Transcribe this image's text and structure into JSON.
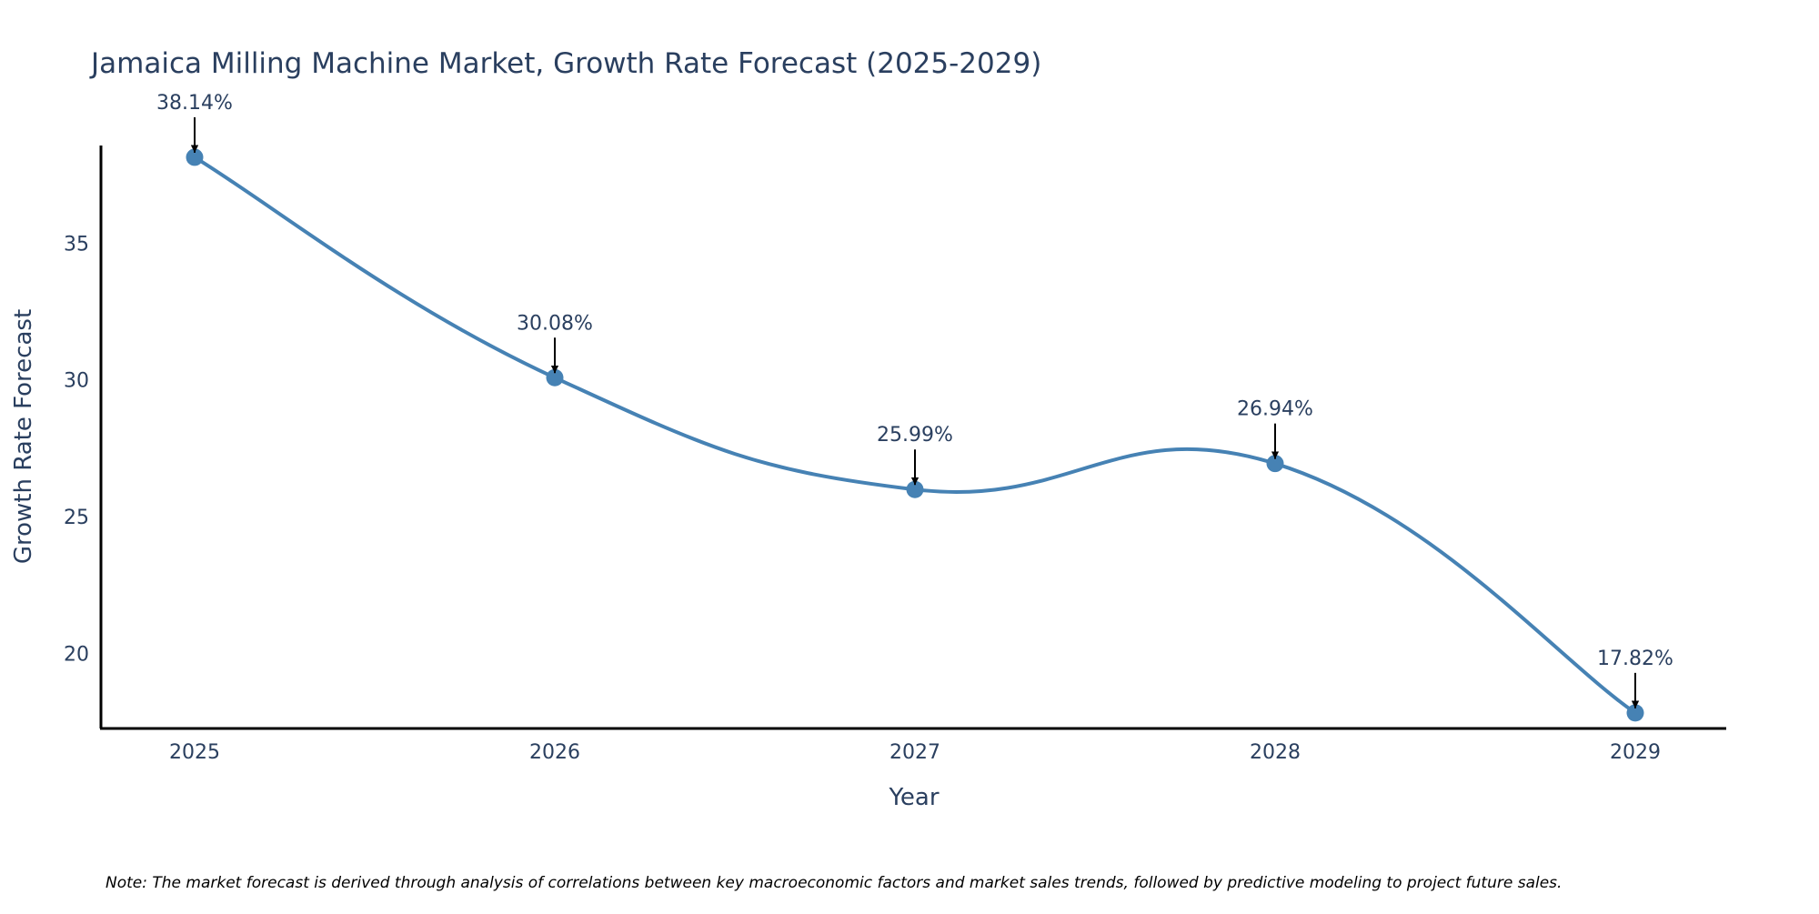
{
  "colors": {
    "line": "#4682b4",
    "marker": "#4682b4",
    "axis": "#000000",
    "text": "#2a3f5f",
    "arrow": "#000000"
  },
  "chart_data": {
    "type": "line",
    "title": "Jamaica Milling Machine Market, Growth Rate Forecast (2025-2029)",
    "xlabel": "Year",
    "ylabel": "Growth Rate Forecast",
    "categories": [
      "2025",
      "2026",
      "2027",
      "2028",
      "2029"
    ],
    "values": [
      38.14,
      30.08,
      25.99,
      26.94,
      17.82
    ],
    "data_labels": [
      "38.14%",
      "30.08%",
      "25.99%",
      "26.94%",
      "17.82%"
    ],
    "y_ticks": [
      20,
      25,
      30,
      35
    ],
    "ylim": [
      17.25,
      38.57
    ],
    "grid": false,
    "line_shape": "spline",
    "note": "Note: The market forecast is derived through analysis of correlations between key macroeconomic factors and market sales trends, followed by predictive modeling to project future sales."
  }
}
